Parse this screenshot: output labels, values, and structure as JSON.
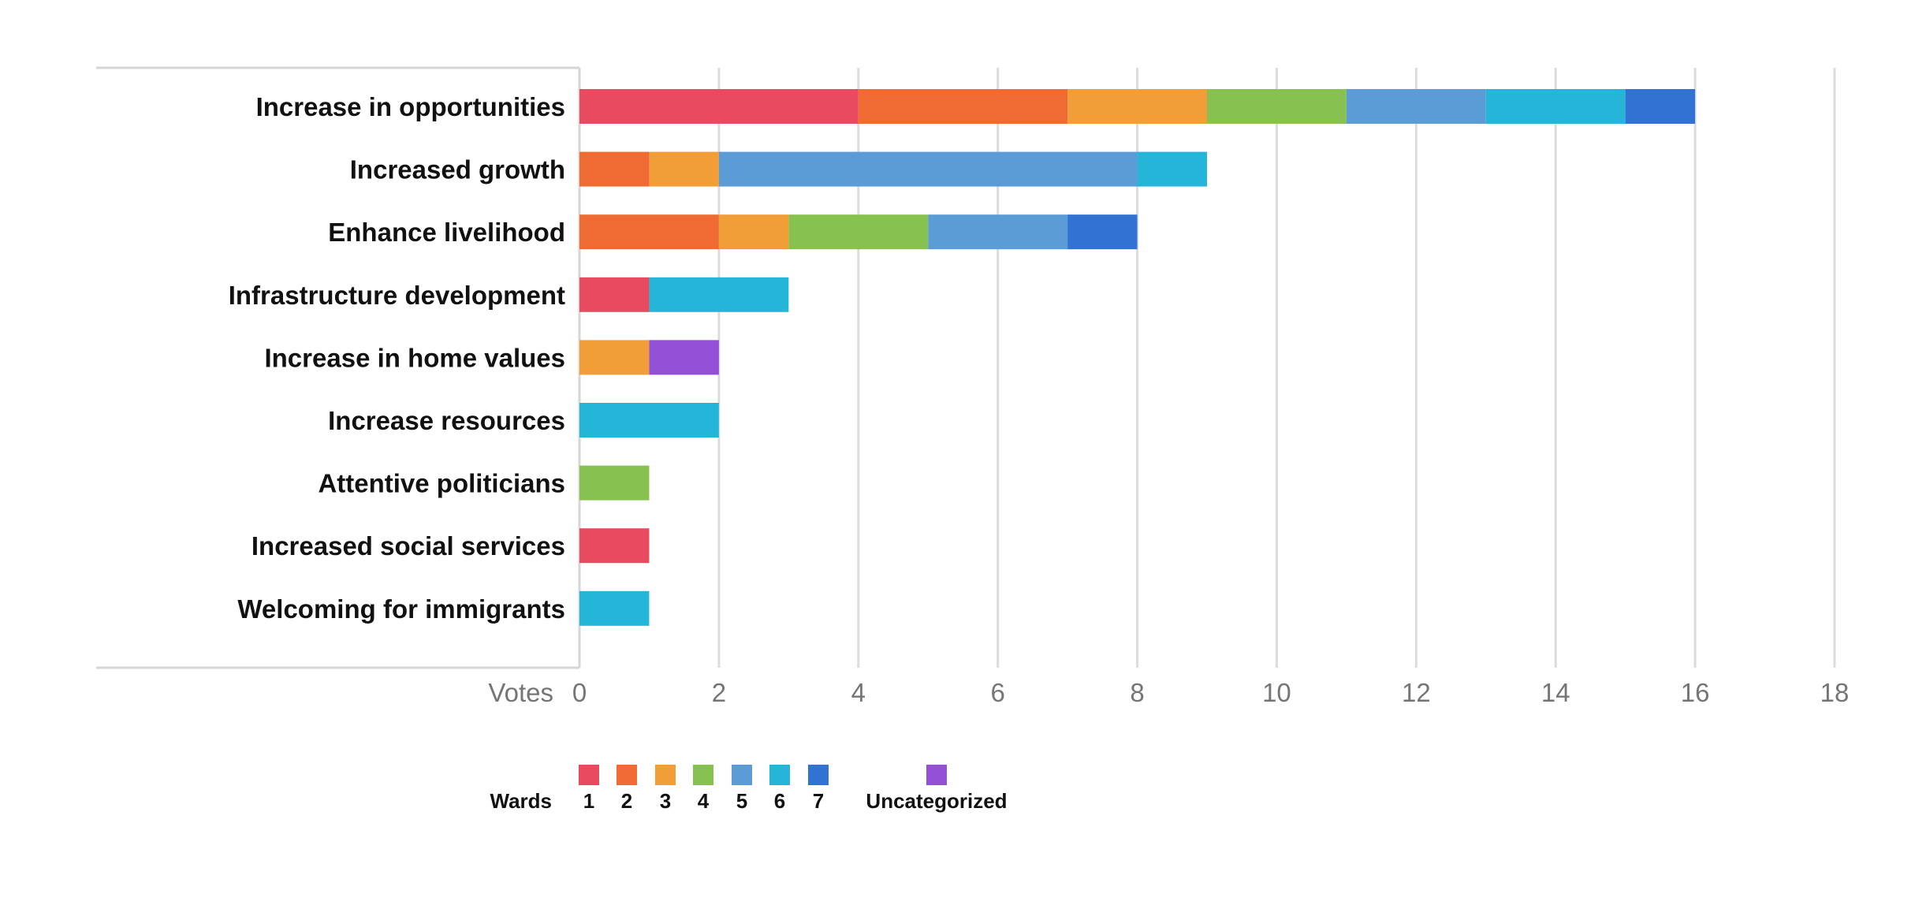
{
  "chart_data": {
    "type": "bar",
    "orientation": "horizontal",
    "stacked": true,
    "categories": [
      "Increase in opportunities",
      "Increased growth",
      "Enhance livelihood",
      "Infrastructure development",
      "Increase in home values",
      "Increase resources",
      "Attentive politicians",
      "Increased social services",
      "Welcoming for immigrants"
    ],
    "series": [
      {
        "name": "1",
        "color": "#e84a5f",
        "values": [
          4,
          0,
          0,
          1,
          0,
          0,
          0,
          1,
          0
        ]
      },
      {
        "name": "2",
        "color": "#ef6b33",
        "values": [
          3,
          1,
          2,
          0,
          0,
          0,
          0,
          0,
          0
        ]
      },
      {
        "name": "3",
        "color": "#f29e38",
        "values": [
          2,
          1,
          1,
          0,
          1,
          0,
          0,
          0,
          0
        ]
      },
      {
        "name": "4",
        "color": "#87c150",
        "values": [
          2,
          0,
          2,
          0,
          0,
          0,
          1,
          0,
          0
        ]
      },
      {
        "name": "5",
        "color": "#5b9bd6",
        "values": [
          2,
          6,
          2,
          0,
          0,
          0,
          0,
          0,
          0
        ]
      },
      {
        "name": "6",
        "color": "#25b5d8",
        "values": [
          2,
          1,
          0,
          2,
          0,
          2,
          0,
          0,
          1
        ]
      },
      {
        "name": "7",
        "color": "#3272d3",
        "values": [
          1,
          0,
          1,
          0,
          0,
          0,
          0,
          0,
          0
        ]
      },
      {
        "name": "Uncategorized",
        "color": "#9350d6",
        "values": [
          0,
          0,
          0,
          0,
          1,
          0,
          0,
          0,
          0
        ]
      }
    ],
    "xlabel": "Votes",
    "xlim": [
      0,
      18
    ],
    "xticks": [
      0,
      2,
      4,
      6,
      8,
      10,
      12,
      14,
      16,
      18
    ],
    "grid": true,
    "legend_title": "Wards",
    "legend_position": "bottom"
  }
}
